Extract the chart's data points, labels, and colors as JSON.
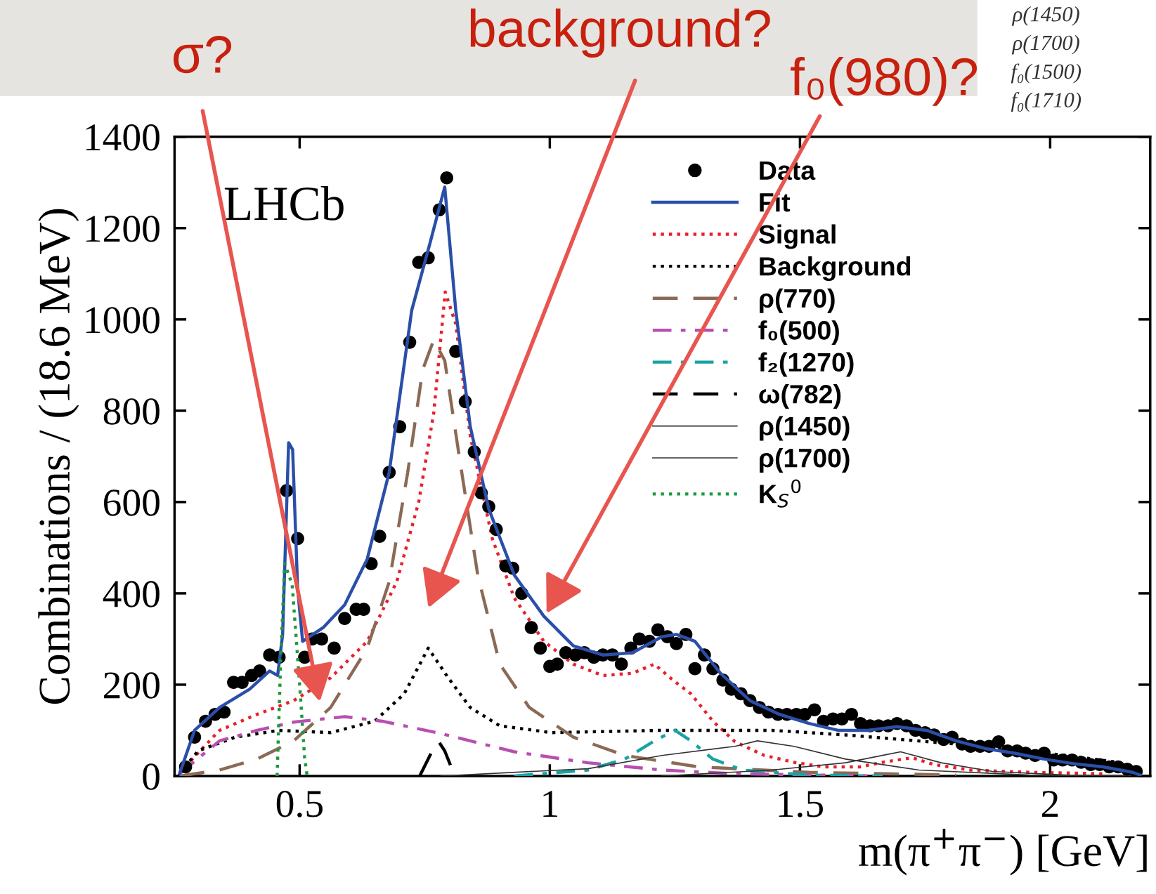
{
  "chart_data": {
    "type": "line",
    "xlabel": "m(π$^{+}$π$^{−}$) [GeV]",
    "ylabel": "Combinations / (18.6 MeV)",
    "xlim": [
      0.25,
      2.2
    ],
    "ylim": [
      0,
      1400
    ],
    "xticks": [
      0.5,
      1,
      1.5,
      2
    ],
    "yticks": [
      0,
      200,
      400,
      600,
      800,
      1000,
      1200,
      1400
    ],
    "grid": false,
    "legend": "top right",
    "annotations": [
      "LHCb",
      "σ?",
      "background?",
      "f₀(980)?",
      "ρ(1450)",
      "ρ(1700)",
      "f₀(1500)",
      "f₀(1710)"
    ],
    "series": [
      {
        "name": "Data",
        "type": "scatter",
        "marker": "circle",
        "color": "#000000",
        "x": [
          0.272,
          0.29,
          0.312,
          0.331,
          0.349,
          0.368,
          0.385,
          0.404,
          0.42,
          0.44,
          0.459,
          0.474,
          0.496,
          0.51,
          0.525,
          0.544,
          0.569,
          0.59,
          0.613,
          0.628,
          0.643,
          0.66,
          0.679,
          0.7,
          0.72,
          0.738,
          0.757,
          0.779,
          0.794,
          0.812,
          0.831,
          0.849,
          0.863,
          0.878,
          0.893,
          0.912,
          0.926,
          0.944,
          0.963,
          0.981,
          1.0,
          1.015,
          1.032,
          1.051,
          1.069,
          1.088,
          1.106,
          1.125,
          1.143,
          1.162,
          1.179,
          1.199,
          1.216,
          1.235,
          1.253,
          1.272,
          1.29,
          1.309,
          1.326,
          1.346,
          1.363,
          1.382,
          1.4,
          1.419,
          1.437,
          1.456,
          1.474,
          1.493,
          1.51,
          1.529,
          1.547,
          1.566,
          1.584,
          1.603,
          1.621,
          1.64,
          1.657,
          1.676,
          1.694,
          1.713,
          1.731,
          1.75,
          1.768,
          1.787,
          1.804,
          1.824,
          1.841,
          1.86,
          1.878,
          1.897,
          1.915,
          1.934,
          1.951,
          1.97,
          1.988,
          2.007,
          2.025,
          2.044,
          2.062,
          2.081,
          2.099,
          2.118,
          2.136,
          2.154,
          2.172
        ],
        "values": [
          20,
          85,
          120,
          135,
          140,
          205,
          205,
          220,
          230,
          265,
          260,
          625,
          520,
          260,
          300,
          300,
          280,
          345,
          365,
          365,
          465,
          525,
          665,
          765,
          950,
          1125,
          1135,
          1240,
          1310,
          930,
          820,
          710,
          620,
          590,
          540,
          460,
          455,
          400,
          325,
          280,
          240,
          245,
          270,
          265,
          270,
          260,
          265,
          265,
          245,
          280,
          300,
          295,
          320,
          305,
          290,
          310,
          235,
          265,
          235,
          210,
          190,
          180,
          165,
          150,
          140,
          135,
          135,
          135,
          135,
          145,
          120,
          125,
          125,
          135,
          115,
          110,
          110,
          110,
          115,
          110,
          100,
          95,
          90,
          80,
          85,
          70,
          65,
          65,
          65,
          75,
          55,
          55,
          50,
          45,
          50,
          35,
          35,
          35,
          30,
          25,
          25,
          20,
          20,
          15,
          10
        ]
      },
      {
        "name": "Fit",
        "color": "#2b4fa8",
        "line_style": "solid",
        "x": [
          0.26,
          0.29,
          0.34,
          0.4,
          0.44,
          0.456,
          0.466,
          0.478,
          0.486,
          0.496,
          0.506,
          0.547,
          0.59,
          0.635,
          0.679,
          0.724,
          0.76,
          0.79,
          0.812,
          0.841,
          0.878,
          0.929,
          0.988,
          1.047,
          1.106,
          1.165,
          1.224,
          1.253,
          1.29,
          1.341,
          1.4,
          1.459,
          1.518,
          1.576,
          1.635,
          1.694,
          1.753,
          1.812,
          1.871,
          1.929,
          1.988,
          2.047,
          2.106,
          2.165,
          2.18
        ],
        "values": [
          5,
          100,
          150,
          190,
          230,
          220,
          310,
          730,
          715,
          410,
          295,
          325,
          375,
          475,
          665,
          1020,
          1165,
          1290,
          1020,
          765,
          585,
          440,
          350,
          285,
          265,
          270,
          305,
          310,
          295,
          225,
          165,
          135,
          115,
          100,
          100,
          108,
          100,
          77,
          60,
          50,
          37,
          27,
          20,
          8,
          2
        ]
      },
      {
        "name": "Signal",
        "color": "#e8202a",
        "line_style": "dotted",
        "x": [
          0.26,
          0.34,
          0.415,
          0.488,
          0.562,
          0.635,
          0.694,
          0.738,
          0.768,
          0.791,
          0.812,
          0.841,
          0.885,
          0.929,
          0.988,
          1.047,
          1.106,
          1.165,
          1.209,
          1.246,
          1.282,
          1.326,
          1.37,
          1.429,
          1.488,
          1.547,
          1.62,
          1.665,
          1.724,
          1.768,
          1.841,
          1.959,
          2.106
        ],
        "values": [
          8,
          100,
          135,
          165,
          215,
          295,
          425,
          600,
          795,
          1060,
          990,
          745,
          520,
          390,
          295,
          245,
          220,
          225,
          245,
          210,
          180,
          120,
          75,
          45,
          30,
          20,
          20,
          30,
          40,
          25,
          13,
          8,
          5
        ]
      },
      {
        "name": "Background",
        "color": "#000000",
        "line_style": "dotted",
        "x": [
          0.26,
          0.297,
          0.371,
          0.459,
          0.562,
          0.65,
          0.709,
          0.757,
          0.797,
          0.841,
          0.9,
          1.003,
          1.224,
          1.444,
          1.591,
          1.812,
          2.032,
          2.135,
          2.18
        ],
        "values": [
          5,
          55,
          85,
          100,
          95,
          120,
          180,
          280,
          215,
          150,
          110,
          95,
          100,
          100,
          90,
          70,
          45,
          30,
          5
        ]
      },
      {
        "name": "ρ(770)",
        "color": "#8b6a55",
        "line_style": "dashed",
        "x": [
          0.26,
          0.34,
          0.415,
          0.488,
          0.562,
          0.635,
          0.679,
          0.716,
          0.746,
          0.768,
          0.79,
          0.819,
          0.856,
          0.9,
          0.959,
          1.047,
          1.15,
          1.297,
          1.518,
          1.812
        ],
        "values": [
          0,
          13,
          37,
          77,
          150,
          280,
          425,
          665,
          890,
          955,
          910,
          700,
          440,
          245,
          150,
          85,
          45,
          20,
          8,
          2
        ]
      },
      {
        "name": "f₀(500)",
        "color": "#b84fb0",
        "line_style": "dashdot",
        "x": [
          0.26,
          0.34,
          0.415,
          0.488,
          0.59,
          0.665,
          0.782,
          0.929,
          1.076,
          1.224,
          1.37,
          1.665
        ],
        "values": [
          5,
          77,
          100,
          118,
          130,
          120,
          93,
          53,
          29,
          13,
          5,
          0
        ]
      },
      {
        "name": "f₂(1270)",
        "color": "#1aa3a3",
        "line_style": "dashdot",
        "x": [
          0.929,
          1.076,
          1.15,
          1.209,
          1.25,
          1.282,
          1.326,
          1.385,
          1.518,
          1.665
        ],
        "values": [
          0,
          13,
          37,
          77,
          100,
          77,
          37,
          13,
          2,
          0
        ]
      },
      {
        "name": "ω(782)",
        "color": "#000000",
        "line_style": "dashed",
        "x": [
          0.74,
          0.765,
          0.778,
          0.79,
          0.81
        ],
        "values": [
          0,
          55,
          75,
          55,
          0
        ]
      },
      {
        "name": "ρ(1450)",
        "color": "#333333",
        "line_style": "solid",
        "x": [
          0.782,
          1.076,
          1.224,
          1.37,
          1.415,
          1.488,
          1.591,
          1.738,
          1.959,
          2.18
        ],
        "values": [
          0,
          16,
          45,
          65,
          77,
          65,
          37,
          13,
          2,
          0
        ]
      },
      {
        "name": "ρ(1700)",
        "color": "#333333",
        "line_style": "solid",
        "x": [
          1.224,
          1.444,
          1.591,
          1.701,
          1.782,
          1.885,
          2.032,
          2.18
        ],
        "values": [
          0,
          13,
          29,
          53,
          29,
          10,
          2,
          0
        ]
      },
      {
        "name": "K$_{S}$$^{0}$",
        "color": "#1a9a3c",
        "line_style": "dotted",
        "x": [
          0.455,
          0.462,
          0.47,
          0.485,
          0.5,
          0.51,
          0.515
        ],
        "values": [
          0,
          250,
          465,
          420,
          200,
          40,
          0
        ]
      }
    ]
  }
}
